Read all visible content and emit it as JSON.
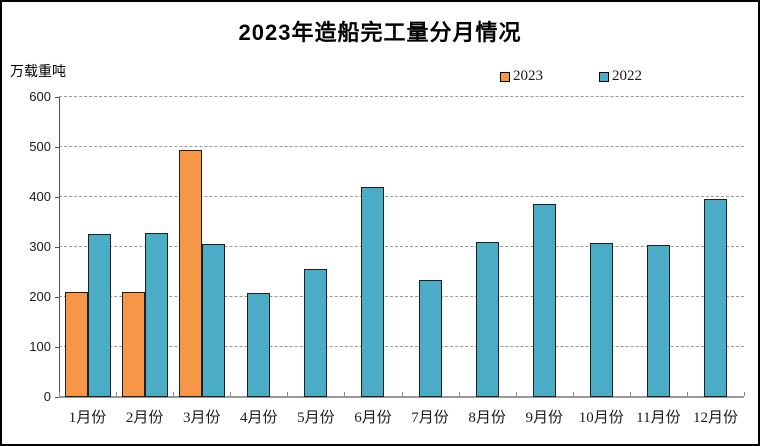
{
  "window": {
    "background_color": "#ffffff",
    "border_color": "#000000"
  },
  "chart_data": {
    "type": "bar",
    "title": "2023年造船完工量分月情况",
    "unit_label": "万载重吨",
    "xlabel": "",
    "ylabel": "万载重吨",
    "categories": [
      "1月份",
      "2月份",
      "3月份",
      "4月份",
      "5月份",
      "6月份",
      "7月份",
      "8月份",
      "9月份",
      "10月份",
      "11月份",
      "12月份"
    ],
    "series": [
      {
        "name": "2023",
        "color": "#F79646",
        "values": [
          210,
          210,
          494,
          null,
          null,
          null,
          null,
          null,
          null,
          null,
          null,
          null
        ]
      },
      {
        "name": "2022",
        "color": "#4BACC6",
        "values": [
          327,
          328,
          307,
          209,
          256,
          421,
          235,
          310,
          386,
          308,
          304,
          396
        ]
      }
    ],
    "ylim": [
      0,
      600
    ],
    "ytick_step": 100,
    "grid": "horizontal-dashed",
    "gridline_color": "#999999",
    "bar_border_color": "#1f1f1f",
    "legend_position": "top-right"
  }
}
